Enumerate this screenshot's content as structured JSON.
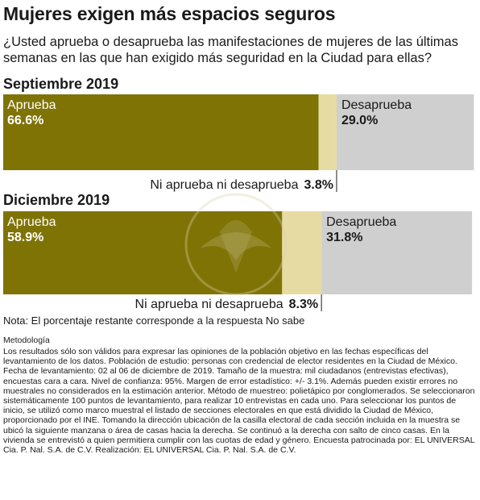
{
  "title": "Mujeres exigen más espacios seguros",
  "question": "¿Usted aprueba o desaprueba las manifestaciones de mujeres de las últimas semanas en las que han exigido más seguridad en la Ciudad para ellas?",
  "colors": {
    "aprueba": "#7f7305",
    "ni": "#e6dca3",
    "desaprueba": "#cfcfcf"
  },
  "chart_data": [
    {
      "type": "bar",
      "title": "Septiembre 2019",
      "series": [
        {
          "name": "Aprueba",
          "value": 66.6,
          "label": "66.6%"
        },
        {
          "name": "Ni aprueba ni desaprueba",
          "value": 3.8,
          "label": "3.8%"
        },
        {
          "name": "Desaprueba",
          "value": 29.0,
          "label": "29.0%"
        }
      ]
    },
    {
      "type": "bar",
      "title": "Diciembre 2019",
      "series": [
        {
          "name": "Aprueba",
          "value": 58.9,
          "label": "58.9%"
        },
        {
          "name": "Ni aprueba ni desaprueba",
          "value": 8.3,
          "label": "8.3%"
        },
        {
          "name": "Desaprueba",
          "value": 31.8,
          "label": "31.8%"
        }
      ]
    }
  ],
  "note": "Nota: El porcentaje restante corresponde a la respuesta No sabe",
  "methodology_heading": "Metodología",
  "methodology": "Los resultados sólo son válidos para expresar las opiniones de la población objetivo en las fechas específicas del levantamiento de los datos. Población de estudio: personas con credencial de elector residentes en la Ciudad de México. Fecha de levantamiento: 02 al 06 de diciembre de 2019. Tamaño de la muestra: mil ciudadanos (entrevistas efectivas), encuestas cara a cara. Nivel de confianza: 95%. Margen de error estadístico: +/- 3.1%. Además pueden existir errores no muestrales no considerados en la estimación anterior. Método de muestreo: polietápico por conglomerados. Se seleccionaron sistemáticamente 100 puntos de levantamiento, para realizar 10 entrevistas en cada uno. Para seleccionar los puntos de inicio, se utilizó como marco muestral el listado de secciones electorales en que está dividido la Ciudad de México, proporcionado por el INE. Tomando la dirección ubicación de la casilla electoral de cada sección incluida en la muestra se ubicó la siguiente manzana o área de casas hacia la derecha. Se continuó a la derecha con salto de cinco casas. En la vivienda se entrevistó a quien permitiera cumplir con las cuotas de edad y género. Encuesta patrocinada por: EL UNIVERSAL Cia. P. Nal. S.A. de C.V. Realización: EL UNIVERSAL Cia. P. Nal. S.A. de C.V."
}
